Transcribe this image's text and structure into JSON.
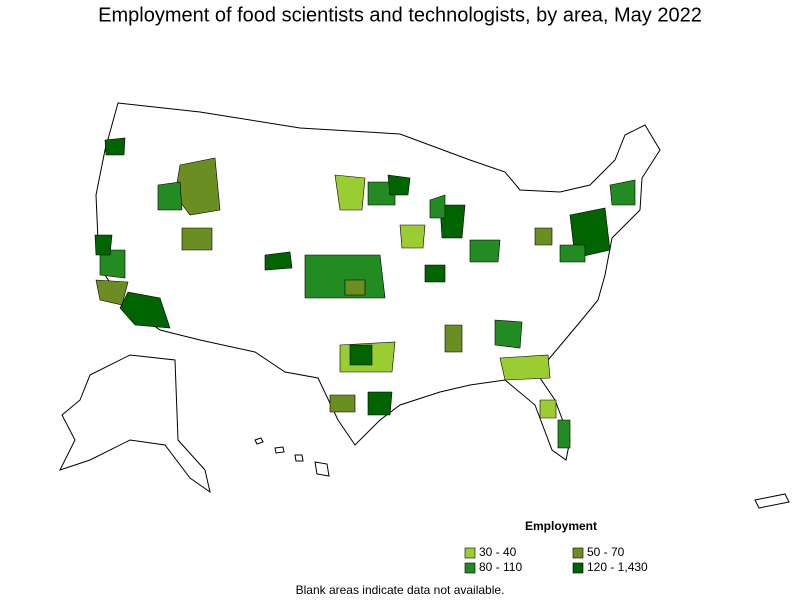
{
  "title": "Employment of food scientists and technologists, by area, May 2022",
  "legend": {
    "title": "Employment",
    "items": [
      {
        "label": "30 - 40",
        "color": "#9acd32"
      },
      {
        "label": "50 - 70",
        "color": "#6b8e23"
      },
      {
        "label": "80 - 110",
        "color": "#228b22"
      },
      {
        "label": "120 - 1,430",
        "color": "#006400"
      }
    ]
  },
  "note": "Blank areas indicate data not available."
}
